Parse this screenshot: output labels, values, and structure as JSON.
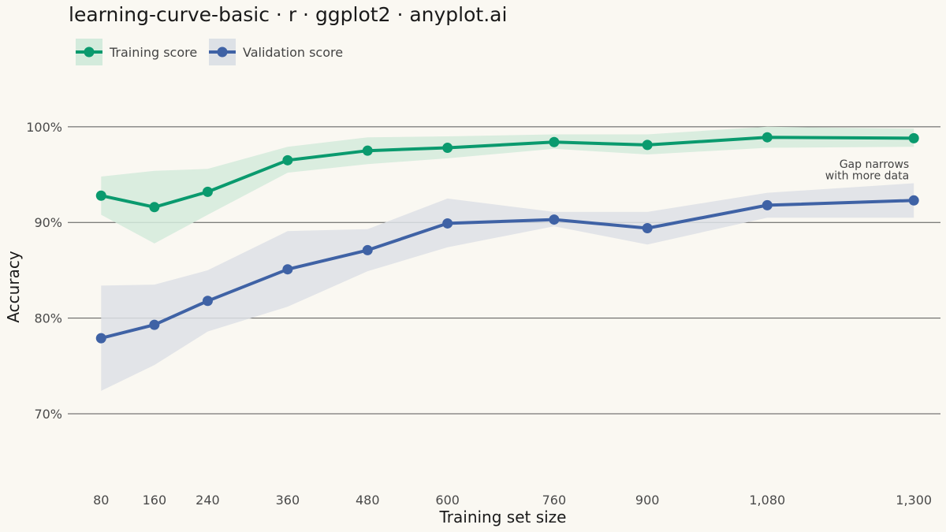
{
  "chart_data": {
    "type": "line",
    "title": "learning-curve-basic · r · ggplot2 · anyplot.ai",
    "xlabel": "Training set size",
    "ylabel": "Accuracy",
    "x": [
      80,
      160,
      240,
      360,
      480,
      600,
      760,
      900,
      1080,
      1300
    ],
    "x_tick_labels": [
      "80",
      "160",
      "240",
      "360",
      "480",
      "600",
      "760",
      "900",
      "1,080",
      "1,300"
    ],
    "xlim": [
      30,
      1340
    ],
    "ylim": [
      0.63,
      1.06
    ],
    "y_ticks": [
      0.7,
      0.8,
      0.9,
      1.0
    ],
    "y_tick_labels": [
      "70%",
      "80%",
      "90%",
      "100%"
    ],
    "grid": "horizontal",
    "legend_position": "top-left",
    "series": [
      {
        "name": "Training score",
        "color": "#0a9a6e",
        "band_color": "#d3ebdc",
        "values": [
          0.928,
          0.916,
          0.932,
          0.965,
          0.975,
          0.978,
          0.984,
          0.981,
          0.989,
          0.988
        ],
        "lower": [
          0.908,
          0.878,
          0.908,
          0.952,
          0.961,
          0.967,
          0.977,
          0.971,
          0.978,
          0.979
        ],
        "upper": [
          0.948,
          0.954,
          0.956,
          0.979,
          0.989,
          0.99,
          0.992,
          0.992,
          1.0,
          0.998
        ]
      },
      {
        "name": "Validation score",
        "color": "#3f62a5",
        "band_color": "#dde1e6",
        "values": [
          0.779,
          0.793,
          0.818,
          0.851,
          0.871,
          0.899,
          0.903,
          0.894,
          0.918,
          0.923
        ],
        "lower": [
          0.724,
          0.751,
          0.786,
          0.812,
          0.849,
          0.874,
          0.896,
          0.877,
          0.905,
          0.905
        ],
        "upper": [
          0.834,
          0.835,
          0.85,
          0.891,
          0.893,
          0.925,
          0.911,
          0.911,
          0.931,
          0.941
        ]
      }
    ],
    "annotations": [
      {
        "text": "Gap narrows",
        "x": 1300,
        "y": 0.961
      },
      {
        "text": "with more data",
        "x": 1300,
        "y": 0.949
      }
    ]
  }
}
